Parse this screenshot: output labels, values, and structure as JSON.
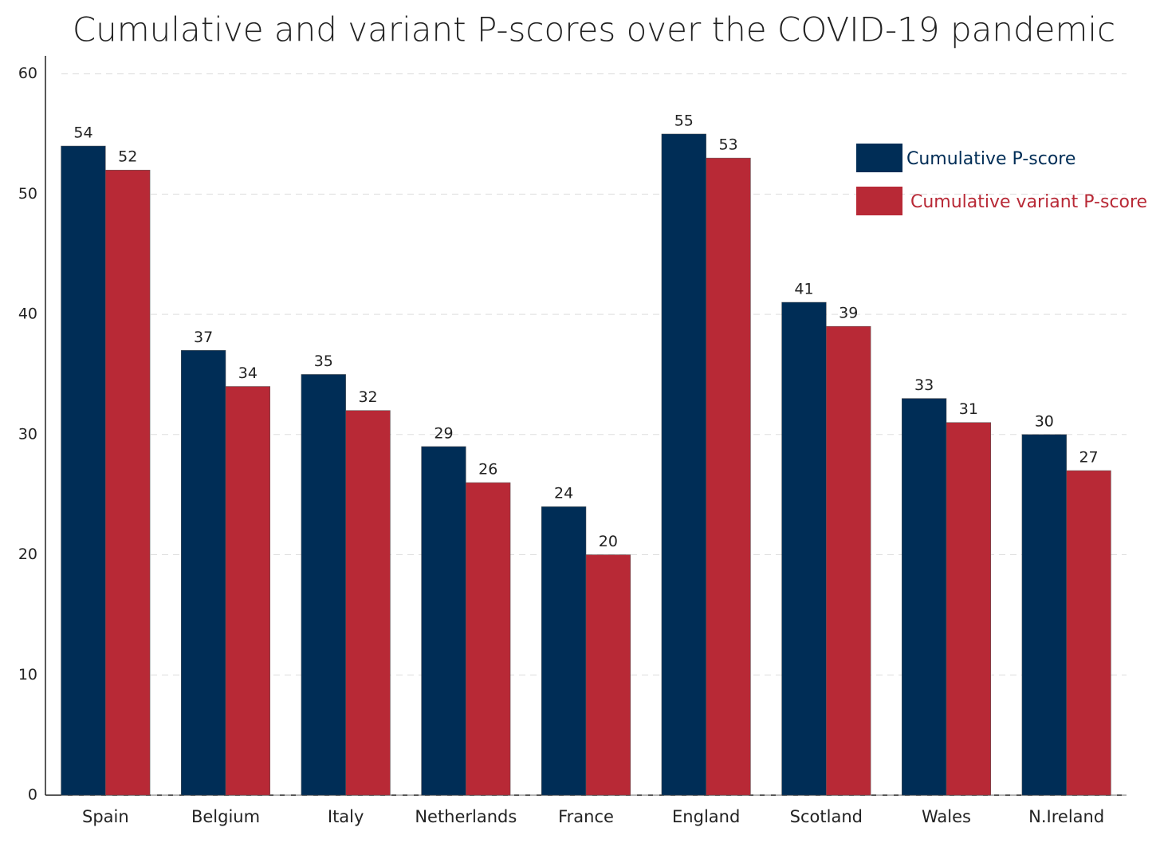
{
  "chart_data": {
    "type": "bar",
    "title": "Cumulative and variant P-scores over the COVID-19 pandemic",
    "categories": [
      "Spain",
      "Belgium",
      "Italy",
      "Netherlands",
      "France",
      "England",
      "Scotland",
      "Wales",
      "N.Ireland"
    ],
    "series": [
      {
        "name": "Cumulative P-score",
        "color": "#002d56",
        "values": [
          54,
          37,
          35,
          29,
          24,
          55,
          41,
          33,
          30
        ]
      },
      {
        "name": "Cumulative variant P-score",
        "color": "#b82936",
        "values": [
          52,
          34,
          32,
          26,
          20,
          53,
          39,
          31,
          27
        ]
      }
    ],
    "ylim": [
      0,
      61.5
    ],
    "yticks": [
      0,
      10,
      20,
      30,
      40,
      50,
      60
    ],
    "grid": true,
    "legend": "upper right"
  }
}
